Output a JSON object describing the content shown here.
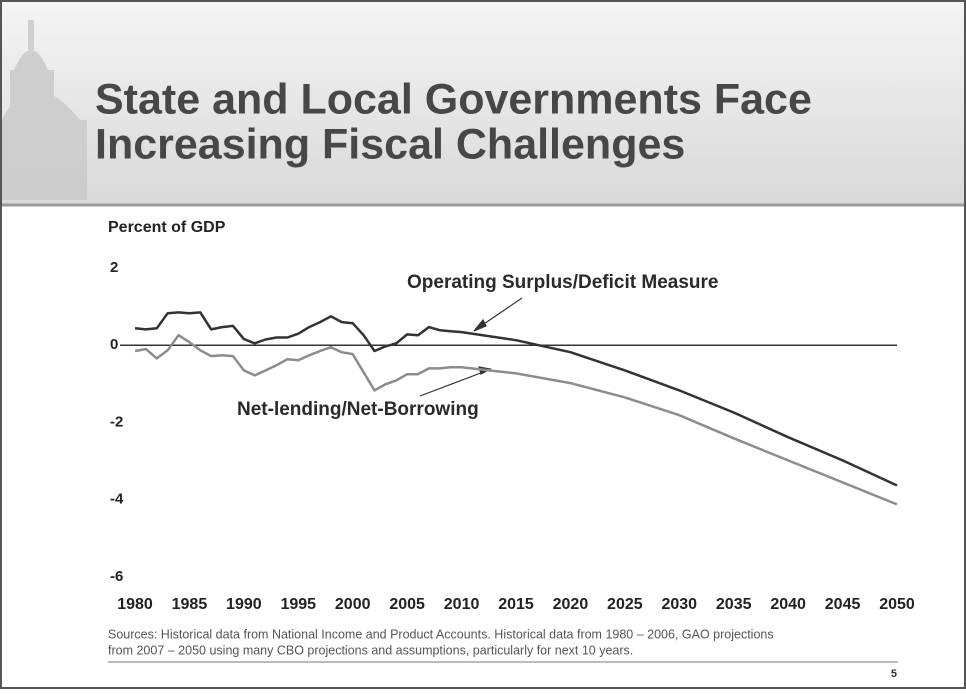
{
  "chart_data": {
    "type": "line",
    "title_lines": [
      "State and Local Governments Face",
      "Increasing Fiscal Challenges"
    ],
    "y_axis_label": "Percent of GDP",
    "x": [
      1980,
      1981,
      1982,
      1983,
      1984,
      1985,
      1986,
      1987,
      1988,
      1989,
      1990,
      1991,
      1992,
      1993,
      1994,
      1995,
      1996,
      1997,
      1998,
      1999,
      2000,
      2001,
      2002,
      2003,
      2004,
      2005,
      2006,
      2007,
      2008,
      2009,
      2010,
      2015,
      2020,
      2025,
      2030,
      2035,
      2040,
      2045,
      2050
    ],
    "series": [
      {
        "name": "Operating Surplus/Deficit Measure",
        "color": "#333333",
        "values": [
          0.44,
          0.41,
          0.44,
          0.83,
          0.85,
          0.83,
          0.85,
          0.41,
          0.47,
          0.5,
          0.16,
          0.05,
          0.15,
          0.2,
          0.2,
          0.3,
          0.47,
          0.6,
          0.75,
          0.6,
          0.57,
          0.26,
          -0.15,
          -0.03,
          0.05,
          0.28,
          0.26,
          0.47,
          0.39,
          0.36,
          0.34,
          0.13,
          -0.18,
          -0.65,
          -1.17,
          -1.74,
          -2.38,
          -2.98,
          -3.63
        ]
      },
      {
        "name": "Net-lending/Net-Borrowing",
        "color": "#8c8c8c",
        "values": [
          -0.15,
          -0.1,
          -0.34,
          -0.13,
          0.26,
          0.08,
          -0.13,
          -0.28,
          -0.26,
          -0.28,
          -0.65,
          -0.78,
          -0.65,
          -0.52,
          -0.36,
          -0.39,
          -0.26,
          -0.15,
          -0.05,
          -0.18,
          -0.23,
          -0.7,
          -1.17,
          -1.01,
          -0.91,
          -0.75,
          -0.75,
          -0.6,
          -0.6,
          -0.57,
          -0.57,
          -0.73,
          -0.98,
          -1.35,
          -1.81,
          -2.41,
          -2.98,
          -3.55,
          -4.12
        ]
      }
    ],
    "xlim": [
      1980,
      2050
    ],
    "xticks": [
      1980,
      1985,
      1990,
      1995,
      2000,
      2005,
      2010,
      2015,
      2020,
      2025,
      2030,
      2035,
      2040,
      2045,
      2050
    ],
    "ylim": [
      -6,
      2
    ],
    "yticks": [
      2,
      0,
      -2,
      -4,
      -6
    ],
    "source_lines": [
      "Sources: Historical data from National Income and Product Accounts. Historical data from 1980 – 2006, GAO projections",
      "from 2007 – 2050 using many CBO projections and assumptions, particularly for next 10 years."
    ],
    "page_number": "5"
  }
}
